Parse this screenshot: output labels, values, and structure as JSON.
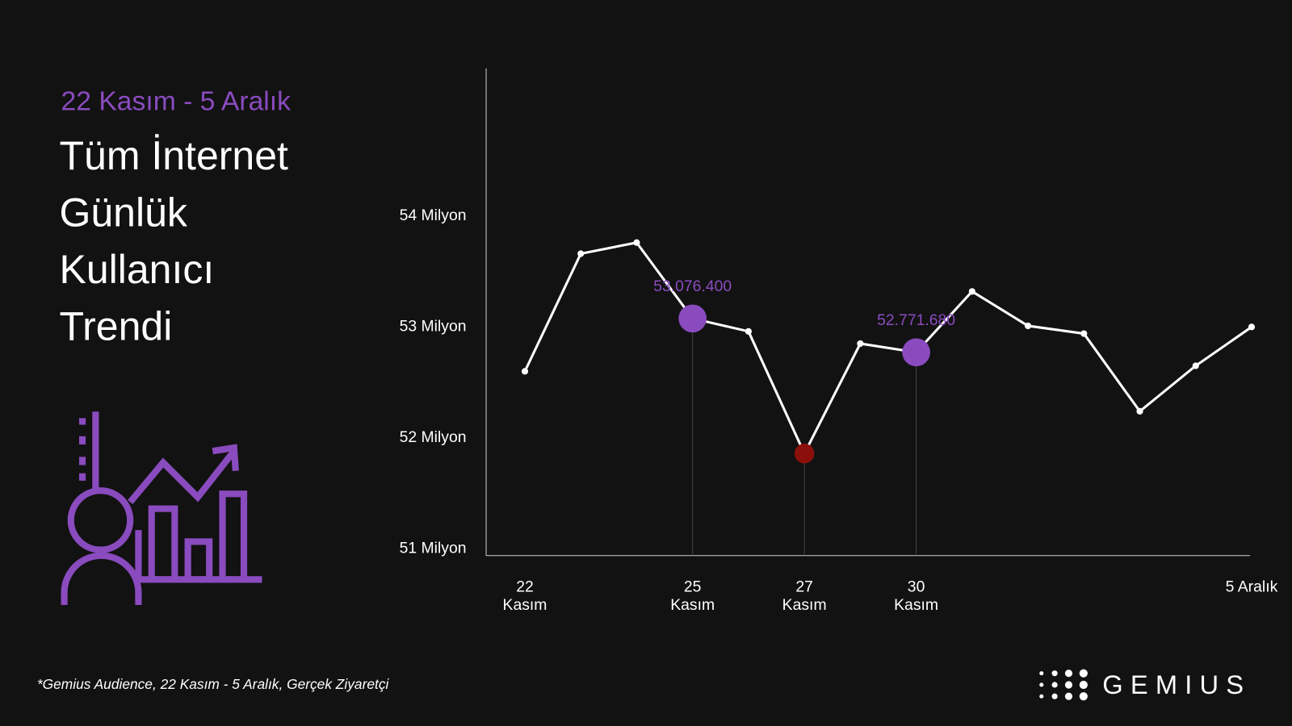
{
  "subtitle": "22 Kasım - 5 Aralık",
  "footnote": "*Gemius Audience, 22 Kasım - 5 Aralık, Gerçek Ziyaretçi",
  "logo": "GEMIUS",
  "chart_data": {
    "type": "line",
    "title": "Tüm İnternet Günlük Kullanıcı Trendi",
    "categories": [
      "22 Kasım",
      null,
      null,
      "25 Kasım",
      null,
      "27 Kasım",
      null,
      "30 Kasım",
      null,
      null,
      null,
      null,
      null,
      "5 Aralık"
    ],
    "values": [
      52600000,
      53660000,
      53760000,
      53076400,
      52960000,
      51860000,
      52850000,
      52771680,
      53320000,
      53010000,
      52940000,
      52240000,
      52650000,
      53000000
    ],
    "value_labels": [
      null,
      null,
      null,
      "53.076.400",
      null,
      null,
      null,
      "52.771.680",
      null,
      null,
      null,
      null,
      null,
      null
    ],
    "color": "#ffffff",
    "highlight_color": "#8a4bbf",
    "low_color": "#8b0f0a",
    "ylim": [
      50940000,
      55330000
    ],
    "yticks": [
      {
        "value": 51000000,
        "label": "51 Milyon"
      },
      {
        "value": 52000000,
        "label": "52 Milyon"
      },
      {
        "value": 53000000,
        "label": "53 Milyon"
      },
      {
        "value": 54000000,
        "label": "54 Milyon"
      }
    ],
    "grid": false
  }
}
